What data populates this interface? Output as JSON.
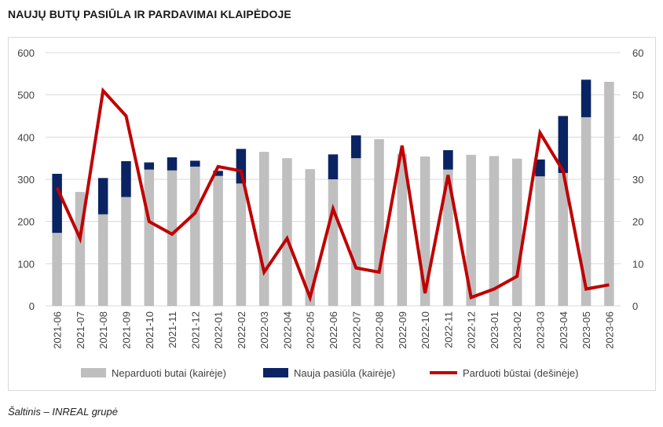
{
  "title": "NAUJŲ BUTŲ PASIŪLA IR PARDAVIMAI KLAIPĖDOJE",
  "source": "Šaltinis – INREAL grupė",
  "chart_data": {
    "type": "bar",
    "categories": [
      "2021-06",
      "2021-07",
      "2021-08",
      "2021-09",
      "2021-10",
      "2021-11",
      "2021-12",
      "2022-01",
      "2022-02",
      "2022-03",
      "2022-04",
      "2022-05",
      "2022-06",
      "2022-07",
      "2022-08",
      "2022-09",
      "2022-10",
      "2022-11",
      "2022-12",
      "2023-01",
      "2023-02",
      "2023-03",
      "2023-04",
      "2023-05",
      "2023-06"
    ],
    "series": [
      {
        "name": "Neparduoti butai (kairėje)",
        "kind": "stacked-bar",
        "axis": "left",
        "color": "#bfbfbf",
        "values": [
          173,
          270,
          217,
          258,
          323,
          321,
          330,
          308,
          290,
          365,
          350,
          324,
          300,
          350,
          395,
          360,
          354,
          323,
          358,
          355,
          349,
          307,
          315,
          447,
          531
        ]
      },
      {
        "name": "Nauja pasiūla (kairėje)",
        "kind": "stacked-bar",
        "axis": "left",
        "color": "#0a2463",
        "values": [
          140,
          0,
          86,
          85,
          17,
          31,
          14,
          12,
          82,
          0,
          0,
          0,
          59,
          54,
          0,
          0,
          0,
          46,
          0,
          0,
          0,
          40,
          135,
          89,
          0
        ]
      },
      {
        "name": "Parduoti būstai (dešinėje)",
        "kind": "line",
        "axis": "right",
        "color": "#c00000",
        "values": [
          28,
          16,
          51,
          45,
          20,
          17,
          22,
          33,
          32,
          8,
          16,
          2,
          23,
          9,
          8,
          38,
          3,
          31,
          2,
          4,
          7,
          41,
          32,
          4,
          5
        ]
      }
    ],
    "y_left": {
      "min": 0,
      "max": 600,
      "ticks": [
        0,
        100,
        200,
        300,
        400,
        500,
        600
      ]
    },
    "y_right": {
      "min": 0,
      "max": 60,
      "ticks": [
        0,
        10,
        20,
        30,
        40,
        50,
        60
      ]
    },
    "grid": true,
    "legend_position": "bottom"
  }
}
